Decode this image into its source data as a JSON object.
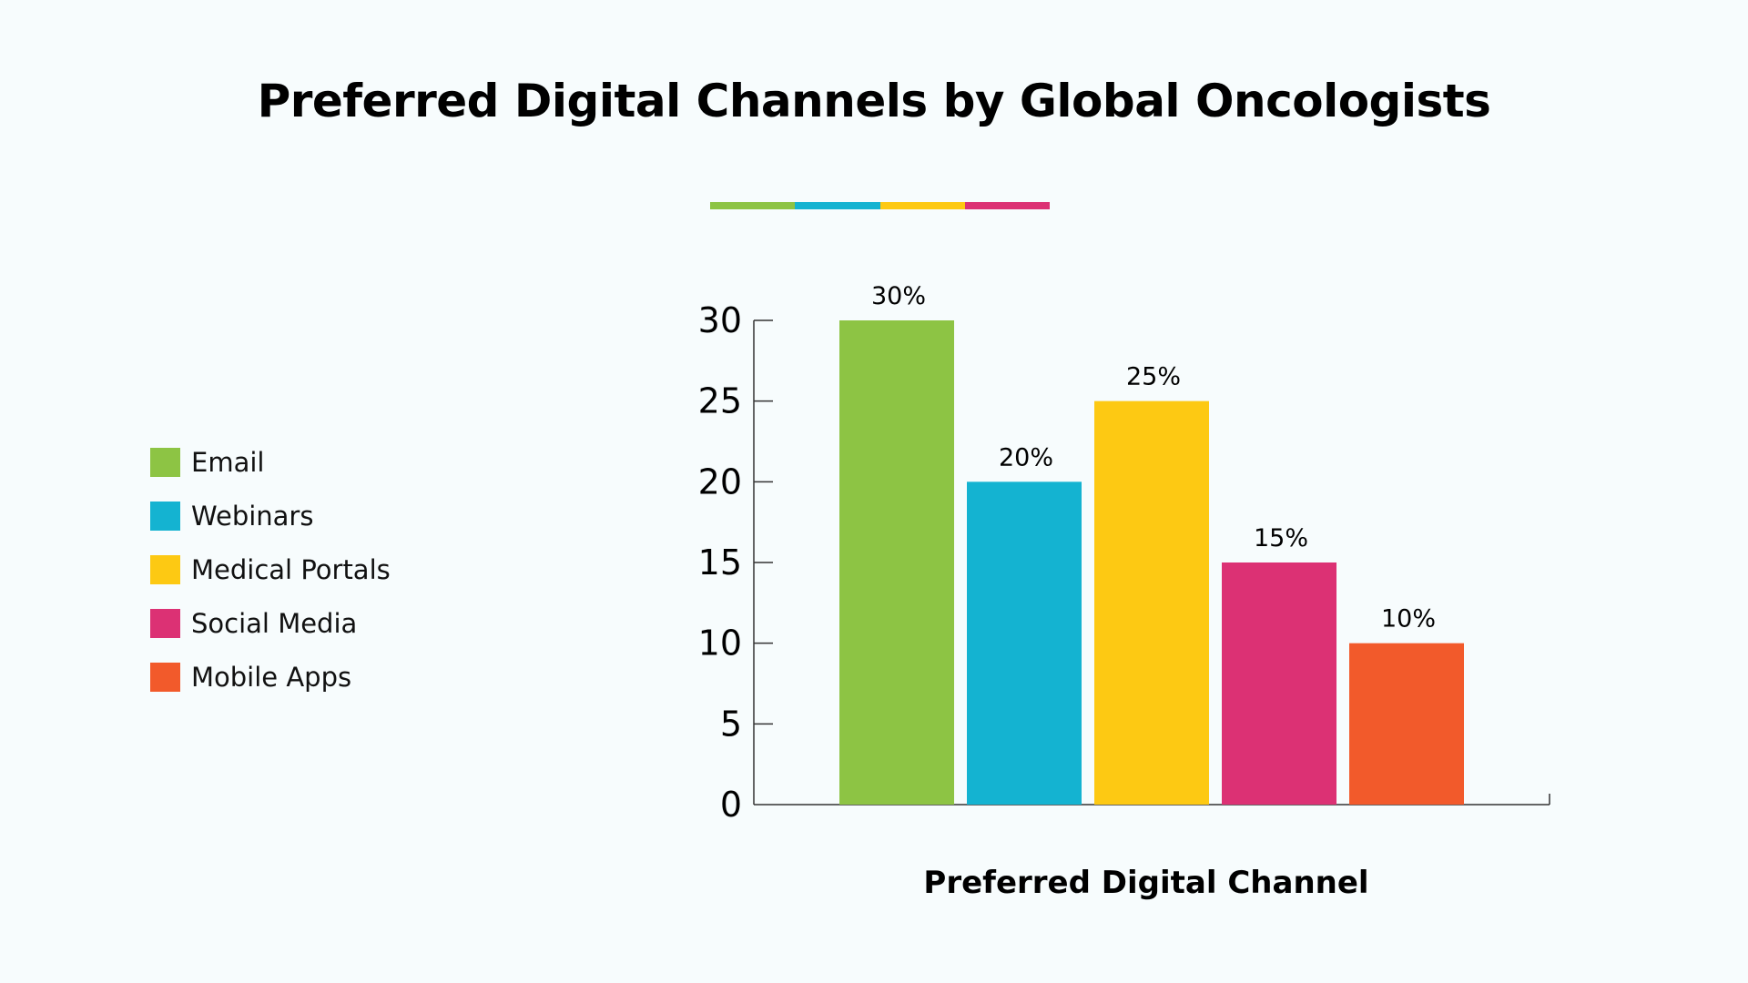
{
  "chart_data": {
    "type": "bar",
    "title": "Preferred Digital Channels by Global Oncologists",
    "xlabel": "Preferred Digital Channel",
    "ylabel": "",
    "categories": [
      "Email",
      "Webinars",
      "Medical Portals",
      "Social Media",
      "Mobile Apps"
    ],
    "values": [
      30,
      20,
      25,
      15,
      10
    ],
    "data_labels": [
      "30%",
      "20%",
      "25%",
      "15%",
      "10%"
    ],
    "colors": [
      "#8dc444",
      "#14b3d1",
      "#fdc913",
      "#dc3174",
      "#f25a2b"
    ],
    "ylim": [
      0,
      30
    ],
    "yticks": [
      0,
      5,
      10,
      15,
      20,
      25,
      30
    ],
    "grid": false,
    "legend_position": "left"
  },
  "accent_colors": [
    "#8dc444",
    "#14b3d1",
    "#fdc913",
    "#dc3174"
  ],
  "axis_color": "#333333"
}
